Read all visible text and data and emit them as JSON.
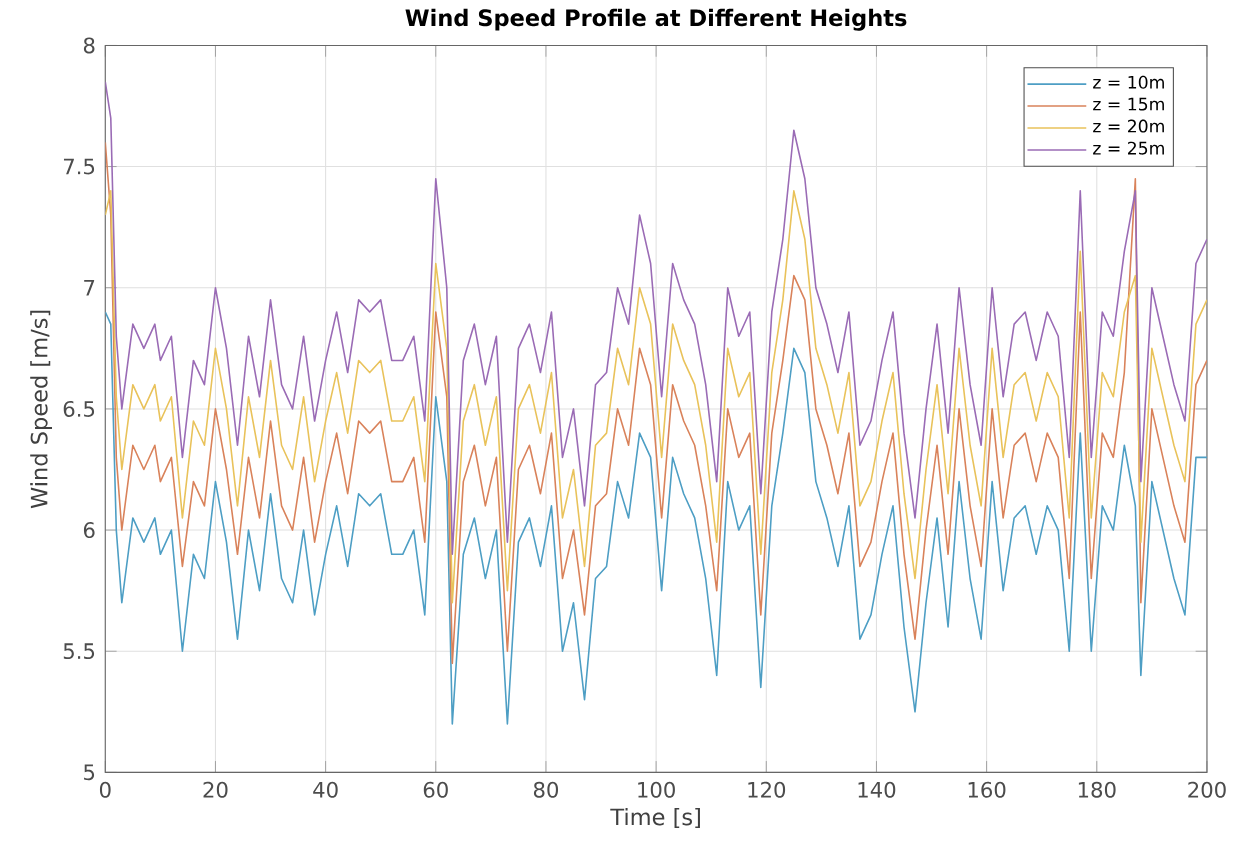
{
  "chart_data": {
    "type": "line",
    "title": "Wind Speed Profile at Different Heights",
    "xlabel": "Time [s]",
    "ylabel": "Wind Speed [m/s]",
    "xlim": [
      0,
      200
    ],
    "ylim": [
      5,
      8
    ],
    "xticks": [
      0,
      20,
      40,
      60,
      80,
      100,
      120,
      140,
      160,
      180,
      200
    ],
    "yticks": [
      5,
      5.5,
      6,
      6.5,
      7,
      7.5,
      8
    ],
    "grid": true,
    "legend": "top right",
    "marker": "none",
    "line_style": "solid",
    "x": [
      0,
      1,
      2,
      3,
      5,
      7,
      9,
      10,
      12,
      14,
      16,
      18,
      20,
      22,
      24,
      26,
      28,
      30,
      32,
      34,
      36,
      38,
      40,
      42,
      44,
      46,
      48,
      50,
      52,
      54,
      56,
      58,
      60,
      62,
      63,
      65,
      67,
      69,
      71,
      73,
      75,
      77,
      79,
      81,
      83,
      85,
      87,
      89,
      91,
      93,
      95,
      97,
      99,
      101,
      103,
      105,
      107,
      109,
      111,
      113,
      115,
      117,
      119,
      121,
      123,
      125,
      127,
      129,
      131,
      133,
      135,
      137,
      139,
      141,
      143,
      145,
      147,
      149,
      151,
      153,
      155,
      157,
      159,
      161,
      163,
      165,
      167,
      169,
      171,
      173,
      175,
      177,
      179,
      181,
      183,
      185,
      187,
      188,
      190,
      192,
      194,
      196,
      198,
      200
    ],
    "series": [
      {
        "name": "z = 10m",
        "color": "#4d9ec4",
        "values": [
          6.9,
          6.85,
          6.0,
          5.7,
          6.05,
          5.95,
          6.05,
          5.9,
          6.0,
          5.5,
          5.9,
          5.8,
          6.2,
          5.95,
          5.55,
          6.0,
          5.75,
          6.15,
          5.8,
          5.7,
          6.0,
          5.65,
          5.9,
          6.1,
          5.85,
          6.15,
          6.1,
          6.15,
          5.9,
          5.9,
          6.0,
          5.65,
          6.55,
          6.2,
          5.2,
          5.9,
          6.05,
          5.8,
          6.0,
          5.2,
          5.95,
          6.05,
          5.85,
          6.1,
          5.5,
          5.7,
          5.3,
          5.8,
          5.85,
          6.2,
          6.05,
          6.4,
          6.3,
          5.75,
          6.3,
          6.15,
          6.05,
          5.8,
          5.4,
          6.2,
          6.0,
          6.1,
          5.35,
          6.1,
          6.4,
          6.75,
          6.65,
          6.2,
          6.05,
          5.85,
          6.1,
          5.55,
          5.65,
          5.9,
          6.1,
          5.6,
          5.25,
          5.7,
          6.05,
          5.6,
          6.2,
          5.8,
          5.55,
          6.2,
          5.75,
          6.05,
          6.1,
          5.9,
          6.1,
          6.0,
          5.5,
          6.4,
          5.5,
          6.1,
          6.0,
          6.35,
          6.1,
          5.4,
          6.2,
          6.0,
          5.8,
          5.65,
          6.3,
          6.3
        ]
      },
      {
        "name": "z = 15m",
        "color": "#d9825a",
        "values": [
          7.6,
          7.3,
          6.3,
          6.0,
          6.35,
          6.25,
          6.35,
          6.2,
          6.3,
          5.85,
          6.2,
          6.1,
          6.5,
          6.25,
          5.9,
          6.3,
          6.05,
          6.45,
          6.1,
          6.0,
          6.3,
          5.95,
          6.2,
          6.4,
          6.15,
          6.45,
          6.4,
          6.45,
          6.2,
          6.2,
          6.3,
          5.95,
          6.9,
          6.55,
          5.45,
          6.2,
          6.35,
          6.1,
          6.3,
          5.5,
          6.25,
          6.35,
          6.15,
          6.4,
          5.8,
          6.0,
          5.65,
          6.1,
          6.15,
          6.5,
          6.35,
          6.75,
          6.6,
          6.05,
          6.6,
          6.45,
          6.35,
          6.1,
          5.75,
          6.5,
          6.3,
          6.4,
          5.65,
          6.4,
          6.7,
          7.05,
          6.95,
          6.5,
          6.35,
          6.15,
          6.4,
          5.85,
          5.95,
          6.2,
          6.4,
          5.9,
          5.55,
          6.0,
          6.35,
          5.9,
          6.5,
          6.1,
          5.85,
          6.5,
          6.05,
          6.35,
          6.4,
          6.2,
          6.4,
          6.3,
          5.8,
          6.9,
          5.8,
          6.4,
          6.3,
          6.65,
          7.45,
          5.7,
          6.5,
          6.3,
          6.1,
          5.95,
          6.6,
          6.7
        ]
      },
      {
        "name": "z = 20m",
        "color": "#e9c25a",
        "values": [
          7.3,
          7.4,
          6.55,
          6.25,
          6.6,
          6.5,
          6.6,
          6.45,
          6.55,
          6.05,
          6.45,
          6.35,
          6.75,
          6.5,
          6.1,
          6.55,
          6.3,
          6.7,
          6.35,
          6.25,
          6.55,
          6.2,
          6.45,
          6.65,
          6.4,
          6.7,
          6.65,
          6.7,
          6.45,
          6.45,
          6.55,
          6.2,
          7.1,
          6.75,
          5.7,
          6.45,
          6.6,
          6.35,
          6.55,
          5.75,
          6.5,
          6.6,
          6.4,
          6.65,
          6.05,
          6.25,
          5.85,
          6.35,
          6.4,
          6.75,
          6.6,
          7.0,
          6.85,
          6.3,
          6.85,
          6.7,
          6.6,
          6.35,
          5.95,
          6.75,
          6.55,
          6.65,
          5.9,
          6.65,
          6.95,
          7.4,
          7.2,
          6.75,
          6.6,
          6.4,
          6.65,
          6.1,
          6.2,
          6.45,
          6.65,
          6.15,
          5.8,
          6.25,
          6.6,
          6.15,
          6.75,
          6.35,
          6.1,
          6.75,
          6.3,
          6.6,
          6.65,
          6.45,
          6.65,
          6.55,
          6.05,
          7.15,
          6.05,
          6.65,
          6.55,
          6.9,
          7.05,
          5.95,
          6.75,
          6.55,
          6.35,
          6.2,
          6.85,
          6.95
        ]
      },
      {
        "name": "z = 25m",
        "color": "#9a6bb5",
        "values": [
          7.85,
          7.7,
          6.8,
          6.5,
          6.85,
          6.75,
          6.85,
          6.7,
          6.8,
          6.3,
          6.7,
          6.6,
          7.0,
          6.75,
          6.35,
          6.8,
          6.55,
          6.95,
          6.6,
          6.5,
          6.8,
          6.45,
          6.7,
          6.9,
          6.65,
          6.95,
          6.9,
          6.95,
          6.7,
          6.7,
          6.8,
          6.45,
          7.45,
          7.0,
          5.9,
          6.7,
          6.85,
          6.6,
          6.8,
          5.95,
          6.75,
          6.85,
          6.65,
          6.9,
          6.3,
          6.5,
          6.1,
          6.6,
          6.65,
          7.0,
          6.85,
          7.3,
          7.1,
          6.55,
          7.1,
          6.95,
          6.85,
          6.6,
          6.2,
          7.0,
          6.8,
          6.9,
          6.15,
          6.9,
          7.2,
          7.65,
          7.45,
          7.0,
          6.85,
          6.65,
          6.9,
          6.35,
          6.45,
          6.7,
          6.9,
          6.4,
          6.05,
          6.5,
          6.85,
          6.4,
          7.0,
          6.6,
          6.35,
          7.0,
          6.55,
          6.85,
          6.9,
          6.7,
          6.9,
          6.8,
          6.3,
          7.4,
          6.3,
          6.9,
          6.8,
          7.15,
          7.4,
          6.2,
          7.0,
          6.8,
          6.6,
          6.45,
          7.1,
          7.2
        ]
      }
    ]
  }
}
